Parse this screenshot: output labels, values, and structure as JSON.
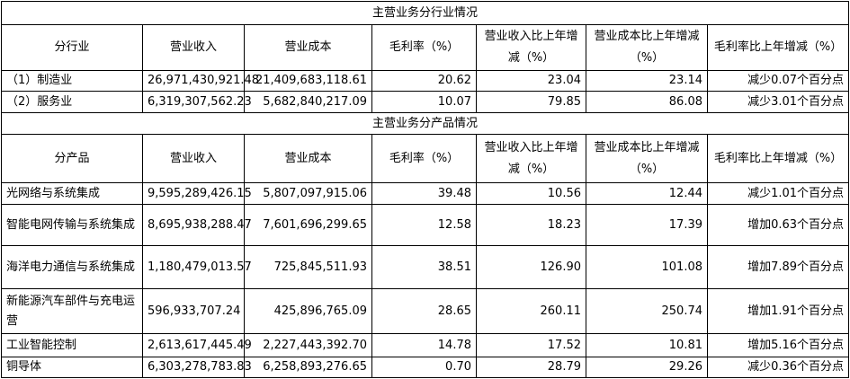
{
  "sections": [
    {
      "title": "主营业务分行业情况",
      "header": [
        "分行业",
        "营业收入",
        "营业成本",
        "毛利率（%）",
        "营业收入比上年增减（%）",
        "营业成本比上年增减（%）",
        "毛利率比上年增减（%）"
      ],
      "rows": [
        [
          "（1）制造业",
          "26,971,430,921.48",
          "21,409,683,118.61",
          "20.62",
          "23.04",
          "23.14",
          "减少0.07个百分点"
        ],
        [
          "（2）服务业",
          "6,319,307,562.23",
          "5,682,840,217.09",
          "10.07",
          "79.85",
          "86.08",
          "减少3.01个百分点"
        ]
      ]
    },
    {
      "title": "主营业务分产品情况",
      "header": [
        "分产品",
        "营业收入",
        "营业成本",
        "毛利率（%）",
        "营业收入比上年增减（%）",
        "营业成本比上年增减（%）",
        "毛利率比上年增减（%）"
      ],
      "rows": [
        [
          "光网络与系统集成",
          "9,595,289,426.15",
          "5,807,097,915.06",
          "39.48",
          "10.56",
          "12.44",
          "减少1.01个百分点"
        ],
        [
          "智能电网传输与系统集成",
          "8,695,938,288.47",
          "7,601,696,299.65",
          "12.58",
          "18.23",
          "17.39",
          "增加0.63个百分点"
        ],
        [
          "海洋电力通信与系统集成",
          "1,180,479,013.57",
          "725,845,511.93",
          "38.51",
          "126.90",
          "101.08",
          "增加7.89个百分点"
        ],
        [
          "新能源汽车部件与充电运营",
          "596,933,707.24",
          "425,896,765.09",
          "28.65",
          "260.11",
          "250.74",
          "增加1.91个百分点"
        ],
        [
          "工业智能控制",
          "2,613,617,445.49",
          "2,227,443,392.70",
          "14.78",
          "17.52",
          "10.81",
          "增加5.16个百分点"
        ],
        [
          "铜导体",
          "6,303,278,783.83",
          "6,258,893,276.65",
          "0.70",
          "28.79",
          "29.26",
          "减少0.36个百分点"
        ]
      ]
    }
  ]
}
